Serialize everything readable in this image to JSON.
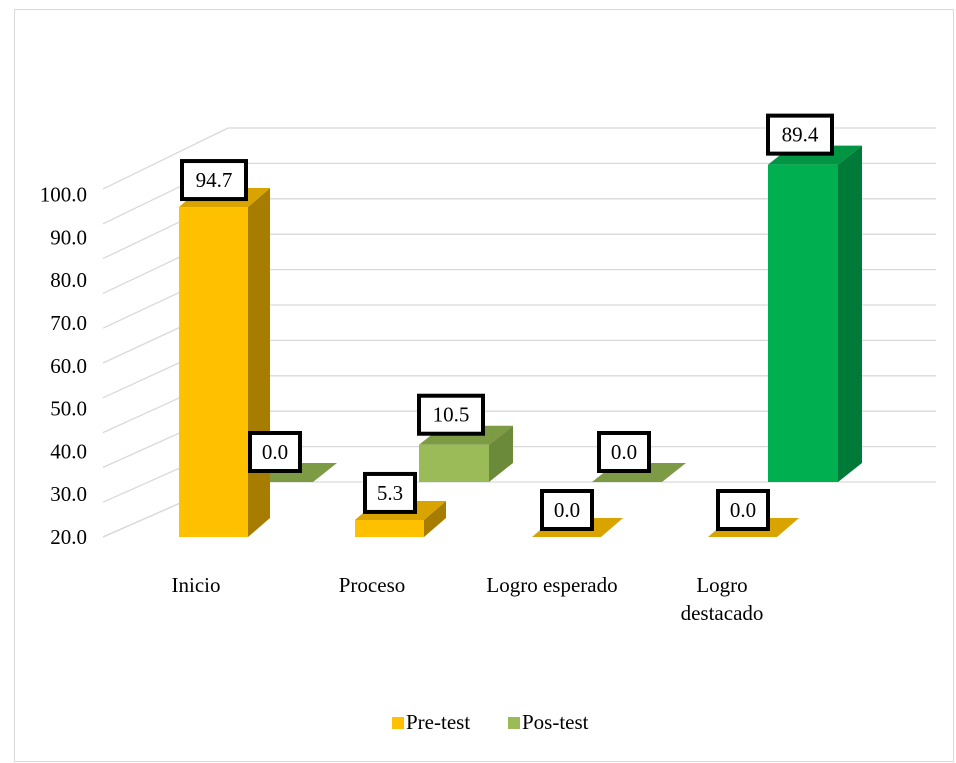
{
  "chart_data": {
    "type": "bar",
    "subtype": "3d-clustered-column",
    "categories": [
      "Inicio",
      "Proceso",
      "Logro esperado",
      "Logro destacado"
    ],
    "category_lines": [
      [
        "Inicio"
      ],
      [
        "Proceso"
      ],
      [
        "Logro esperado"
      ],
      [
        "Logro",
        "destacado"
      ]
    ],
    "series": [
      {
        "name": "Pre-test",
        "values": [
          94.7,
          5.3,
          0.0,
          0.0
        ],
        "value_labels": [
          "94.7",
          "5.3",
          "0.0",
          "0.0"
        ],
        "color": "#ffc000",
        "side_color": "#a67d00",
        "top_color": "#d9a300"
      },
      {
        "name": "Pos-test",
        "values": [
          0.0,
          10.5,
          0.0,
          89.4
        ],
        "value_labels": [
          "0.0",
          "10.5",
          "0.0",
          "89.4"
        ],
        "color": "#9bbb59",
        "side_color": "#6b8a3a",
        "top_color": "#7d9a45",
        "last_color": "#00b050",
        "last_side_color": "#007a38",
        "last_top_color": "#009443"
      }
    ],
    "y_tick_labels": [
      "20.0",
      "30.0",
      "40.0",
      "50.0",
      "60.0",
      "70.0",
      "80.0",
      "90.0",
      "100.0"
    ],
    "ylim": [
      0,
      100
    ],
    "grid": true,
    "legend_position": "bottom",
    "title": "",
    "xlabel": "",
    "ylabel": ""
  }
}
